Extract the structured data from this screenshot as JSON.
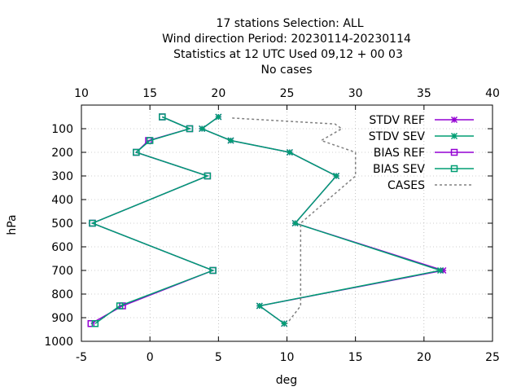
{
  "chart_data": {
    "type": "line",
    "title_lines": [
      "17 stations Selection: ALL",
      "Wind direction  Period: 20230114-20230114",
      "Statistics at 12 UTC  Used  09,12  + 00 03",
      "No cases"
    ],
    "xlabel": "deg",
    "ylabel": "hPa",
    "xlim": [
      -5,
      25
    ],
    "x2lim": [
      10,
      40
    ],
    "ylim": [
      1000,
      0
    ],
    "y_reversed": true,
    "x_ticks": [
      -5,
      0,
      5,
      10,
      15,
      20,
      25
    ],
    "x2_ticks": [
      10,
      15,
      20,
      25,
      30,
      35,
      40
    ],
    "y_ticks": [
      100,
      200,
      300,
      400,
      500,
      600,
      700,
      800,
      900,
      1000
    ],
    "grid": true,
    "legend_position": "top-right",
    "series": [
      {
        "name": "STDV REF",
        "color": "#9400d3",
        "marker": "star",
        "axis": "x1",
        "points": [
          [
            5,
            50
          ],
          [
            3.8,
            100
          ],
          [
            5.9,
            150
          ],
          [
            10.2,
            200
          ],
          [
            13.6,
            300
          ],
          [
            10.6,
            500
          ],
          [
            21.4,
            700
          ],
          [
            8,
            850
          ],
          [
            9.8,
            925
          ]
        ]
      },
      {
        "name": "STDV SEV",
        "color": "#009e73",
        "marker": "star",
        "axis": "x1",
        "points": [
          [
            5,
            50
          ],
          [
            3.8,
            100
          ],
          [
            5.9,
            150
          ],
          [
            10.2,
            200
          ],
          [
            13.6,
            300
          ],
          [
            10.6,
            500
          ],
          [
            21.2,
            700
          ],
          [
            8,
            850
          ],
          [
            9.8,
            925
          ]
        ]
      },
      {
        "name": "BIAS REF",
        "color": "#9400d3",
        "marker": "square",
        "axis": "x1",
        "points": [
          [
            0.9,
            50
          ],
          [
            2.9,
            100
          ],
          [
            -0.1,
            150
          ],
          [
            -1,
            200
          ],
          [
            4.2,
            300
          ],
          [
            -4.2,
            500
          ],
          [
            4.6,
            700
          ],
          [
            -2,
            850
          ],
          [
            -4.3,
            925
          ]
        ]
      },
      {
        "name": "BIAS SEV",
        "color": "#009e73",
        "marker": "square",
        "axis": "x1",
        "points": [
          [
            0.9,
            50
          ],
          [
            2.9,
            100
          ],
          [
            0,
            150
          ],
          [
            -1,
            200
          ],
          [
            4.2,
            300
          ],
          [
            -4.2,
            500
          ],
          [
            4.6,
            700
          ],
          [
            -2.2,
            850
          ],
          [
            -4,
            925
          ]
        ]
      },
      {
        "name": "CASES",
        "color": "#808080",
        "marker": "none",
        "dashed": true,
        "axis": "x2",
        "points": [
          [
            21,
            55
          ],
          [
            28.5,
            80
          ],
          [
            29,
            100
          ],
          [
            27.5,
            150
          ],
          [
            30,
            200
          ],
          [
            30,
            300
          ],
          [
            26,
            500
          ],
          [
            26,
            850
          ],
          [
            25,
            925
          ]
        ]
      }
    ]
  }
}
